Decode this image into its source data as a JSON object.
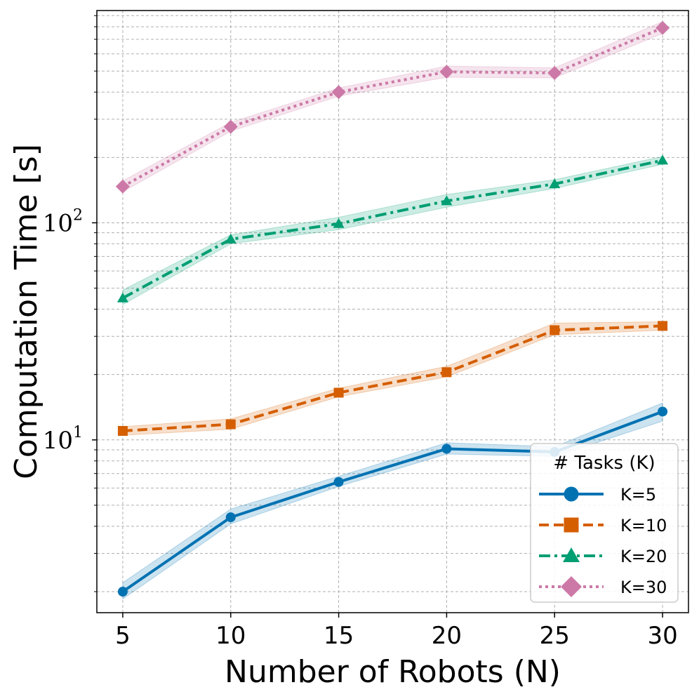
{
  "chart_data": {
    "type": "line",
    "title": "",
    "xlabel": "Number of Robots (N)",
    "ylabel": "Computation Time [s]",
    "yscale": "log",
    "x": [
      5,
      10,
      15,
      20,
      25,
      30
    ],
    "x_ticks": [
      "5",
      "10",
      "15",
      "20",
      "25",
      "30"
    ],
    "xlim": [
      3.8,
      31.2
    ],
    "ylim": [
      1.6,
      950
    ],
    "y_major_ticks": [
      {
        "value": 10,
        "base": "10",
        "exp": "1"
      },
      {
        "value": 100,
        "base": "10",
        "exp": "2"
      }
    ],
    "grid": true,
    "legend": {
      "title": "# Tasks (K)",
      "placement": "lower-right"
    },
    "series": [
      {
        "name": "K=5",
        "color": "#0072b2",
        "marker": "circle",
        "linestyle": "solid",
        "values": [
          2.0,
          4.4,
          6.4,
          9.1,
          8.8,
          13.5
        ],
        "lower": [
          1.85,
          4.1,
          6.1,
          8.6,
          8.4,
          12.2
        ],
        "upper": [
          2.2,
          4.8,
          6.8,
          9.7,
          9.3,
          14.8
        ]
      },
      {
        "name": "K=10",
        "color": "#d55e00",
        "marker": "square",
        "linestyle": "dashed",
        "values": [
          11.0,
          11.8,
          16.5,
          20.5,
          32.0,
          33.5
        ],
        "lower": [
          10.5,
          11.2,
          15.8,
          19.5,
          30.5,
          32.0
        ],
        "upper": [
          11.5,
          12.5,
          17.3,
          21.8,
          34.5,
          35.0
        ]
      },
      {
        "name": "K=20",
        "color": "#009e73",
        "marker": "triangle",
        "linestyle": "dashdot",
        "values": [
          45,
          84,
          99,
          126,
          151,
          194
        ],
        "lower": [
          42,
          80,
          93,
          118,
          144,
          186
        ],
        "upper": [
          49,
          88,
          106,
          135,
          158,
          202
        ]
      },
      {
        "name": "K=30",
        "color": "#cc79a7",
        "marker": "diamond",
        "linestyle": "dotted",
        "values": [
          147,
          277,
          400,
          496,
          490,
          790
        ],
        "lower": [
          139,
          264,
          383,
          468,
          465,
          745
        ],
        "upper": [
          156,
          290,
          418,
          527,
          517,
          845
        ]
      }
    ]
  }
}
